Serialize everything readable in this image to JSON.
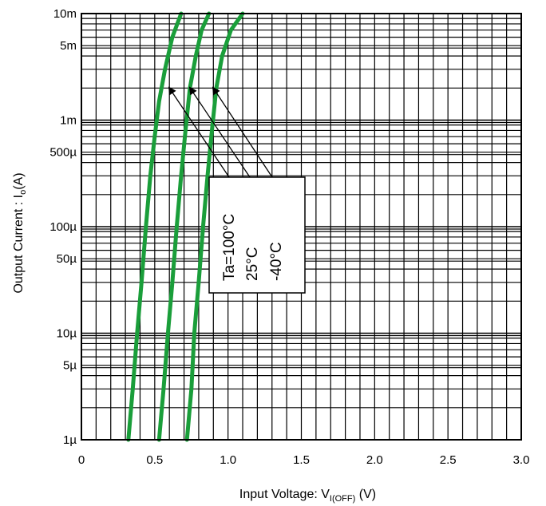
{
  "chart_data": {
    "type": "line",
    "title": "",
    "xlabel": {
      "prefix": "Input Voltage: V",
      "subscript": "I(OFF)",
      "suffix": " (V)"
    },
    "ylabel": {
      "prefix": "Output Current : I",
      "subscript": "o",
      "suffix": "(A)"
    },
    "x_scale": "linear",
    "y_scale": "log",
    "xlim": [
      0,
      3.0
    ],
    "ylim": [
      1e-06,
      0.01
    ],
    "x_ticks": [
      {
        "value": 0,
        "label": "0"
      },
      {
        "value": 0.5,
        "label": "0.5"
      },
      {
        "value": 1.0,
        "label": "1.0"
      },
      {
        "value": 1.5,
        "label": "1.5"
      },
      {
        "value": 2.0,
        "label": "2.0"
      },
      {
        "value": 2.5,
        "label": "2.5"
      },
      {
        "value": 3.0,
        "label": "3.0"
      }
    ],
    "y_ticks": [
      {
        "value": 1e-06,
        "label": "1µ"
      },
      {
        "value": 5e-06,
        "label": "5µ"
      },
      {
        "value": 1e-05,
        "label": "10µ"
      },
      {
        "value": 5e-05,
        "label": "50µ"
      },
      {
        "value": 0.0001,
        "label": "100µ"
      },
      {
        "value": 0.0005,
        "label": "500µ"
      },
      {
        "value": 0.001,
        "label": "1m"
      },
      {
        "value": 0.005,
        "label": "5m"
      },
      {
        "value": 0.01,
        "label": "10m"
      }
    ],
    "grid": true,
    "series_color": "#1a9e3a",
    "series": [
      {
        "name": "Ta=100°C",
        "points": [
          [
            0.32,
            1e-06
          ],
          [
            0.35,
            3e-06
          ],
          [
            0.38,
            1e-05
          ],
          [
            0.41,
            3e-05
          ],
          [
            0.44,
            0.0001
          ],
          [
            0.47,
            0.0003
          ],
          [
            0.5,
            0.0007
          ],
          [
            0.53,
            0.0015
          ],
          [
            0.57,
            0.003
          ],
          [
            0.62,
            0.006
          ],
          [
            0.68,
            0.01
          ]
        ]
      },
      {
        "name": "25°C",
        "points": [
          [
            0.53,
            1e-06
          ],
          [
            0.56,
            3e-06
          ],
          [
            0.59,
            1e-05
          ],
          [
            0.62,
            3e-05
          ],
          [
            0.65,
            0.0001
          ],
          [
            0.68,
            0.0003
          ],
          [
            0.71,
            0.0008
          ],
          [
            0.74,
            0.002
          ],
          [
            0.78,
            0.004
          ],
          [
            0.82,
            0.007
          ],
          [
            0.87,
            0.01
          ]
        ]
      },
      {
        "name": "-40°C",
        "points": [
          [
            0.72,
            1e-06
          ],
          [
            0.75,
            3e-06
          ],
          [
            0.77,
            1e-05
          ],
          [
            0.8,
            3e-05
          ],
          [
            0.83,
            0.0001
          ],
          [
            0.86,
            0.0003
          ],
          [
            0.89,
            0.0008
          ],
          [
            0.92,
            0.002
          ],
          [
            0.96,
            0.004
          ],
          [
            1.02,
            0.007
          ],
          [
            1.1,
            0.01
          ]
        ]
      }
    ],
    "annotation": {
      "lines": [
        "Ta=100°C",
        "25°C",
        "-40°C"
      ],
      "placement": "center-left, rotated text box with arrows to each curve"
    }
  }
}
